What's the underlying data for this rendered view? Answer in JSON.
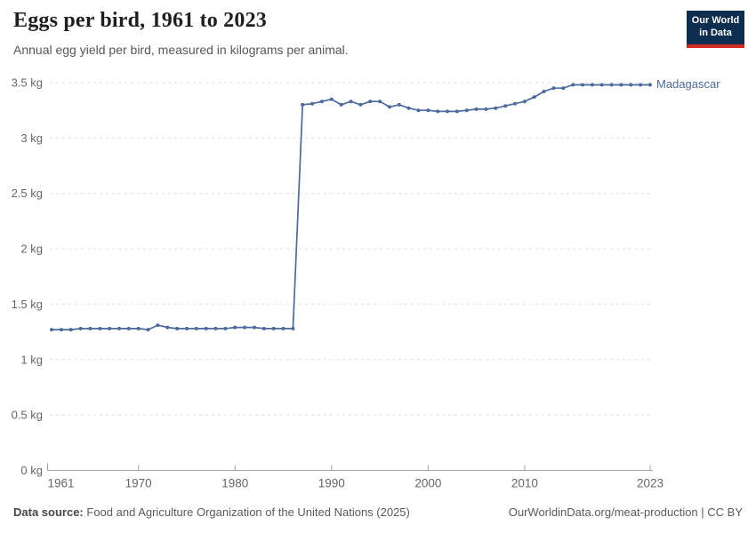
{
  "header": {
    "title": "Eggs per bird, 1961 to 2023",
    "subtitle": "Annual egg yield per bird, measured in kilograms per animal."
  },
  "logo": {
    "line1": "Our World",
    "line2": "in Data",
    "bg_color": "#0d2e4f",
    "accent_color": "#cf2a1d",
    "text_color": "#ffffff"
  },
  "colors": {
    "line": "#4c6a9c",
    "grid": "#dedede",
    "axis": "#a3a3a3",
    "tick_label": "#666666"
  },
  "chart_data": {
    "type": "line",
    "title": "Eggs per bird, 1961 to 2023",
    "subtitle": "Annual egg yield per bird, measured in kilograms per animal.",
    "xlim": [
      1961,
      2023
    ],
    "ylim": [
      0,
      3.5
    ],
    "grid": "horizontal-dashed",
    "legend": "end-of-line-label",
    "y_unit": "kg",
    "x_ticks": [
      {
        "value": 1961,
        "label": "1961"
      },
      {
        "value": 1970,
        "label": "1970"
      },
      {
        "value": 1980,
        "label": "1980"
      },
      {
        "value": 1990,
        "label": "1990"
      },
      {
        "value": 2000,
        "label": "2000"
      },
      {
        "value": 2010,
        "label": "2010"
      },
      {
        "value": 2023,
        "label": "2023"
      }
    ],
    "y_ticks": [
      {
        "value": 0,
        "label": "0 kg"
      },
      {
        "value": 0.5,
        "label": "0.5 kg"
      },
      {
        "value": 1,
        "label": "1 kg"
      },
      {
        "value": 1.5,
        "label": "1.5 kg"
      },
      {
        "value": 2,
        "label": "2 kg"
      },
      {
        "value": 2.5,
        "label": "2.5 kg"
      },
      {
        "value": 3,
        "label": "3 kg"
      },
      {
        "value": 3.5,
        "label": "3.5 kg"
      }
    ],
    "x": [
      1961,
      1962,
      1963,
      1964,
      1965,
      1966,
      1967,
      1968,
      1969,
      1970,
      1971,
      1972,
      1973,
      1974,
      1975,
      1976,
      1977,
      1978,
      1979,
      1980,
      1981,
      1982,
      1983,
      1984,
      1985,
      1986,
      1987,
      1988,
      1989,
      1990,
      1991,
      1992,
      1993,
      1994,
      1995,
      1996,
      1997,
      1998,
      1999,
      2000,
      2001,
      2002,
      2003,
      2004,
      2005,
      2006,
      2007,
      2008,
      2009,
      2010,
      2011,
      2012,
      2013,
      2014,
      2015,
      2016,
      2017,
      2018,
      2019,
      2020,
      2021,
      2022,
      2023
    ],
    "series": [
      {
        "name": "Madagascar",
        "color": "#4c6a9c",
        "values": [
          1.27,
          1.27,
          1.27,
          1.28,
          1.28,
          1.28,
          1.28,
          1.28,
          1.28,
          1.28,
          1.27,
          1.31,
          1.29,
          1.28,
          1.28,
          1.28,
          1.28,
          1.28,
          1.28,
          1.29,
          1.29,
          1.29,
          1.28,
          1.28,
          1.28,
          1.28,
          3.3,
          3.31,
          3.33,
          3.35,
          3.3,
          3.33,
          3.3,
          3.33,
          3.33,
          3.28,
          3.3,
          3.27,
          3.25,
          3.25,
          3.24,
          3.24,
          3.24,
          3.25,
          3.26,
          3.26,
          3.27,
          3.29,
          3.31,
          3.33,
          3.37,
          3.42,
          3.45,
          3.45,
          3.48,
          3.48,
          3.48,
          3.48,
          3.48,
          3.48,
          3.48,
          3.48,
          3.48
        ]
      }
    ]
  },
  "footer": {
    "datasource_label": "Data source:",
    "datasource_text": "Food and Agriculture Organization of the United Nations (2025)",
    "attribution": "OurWorldinData.org/meat-production | CC BY"
  }
}
